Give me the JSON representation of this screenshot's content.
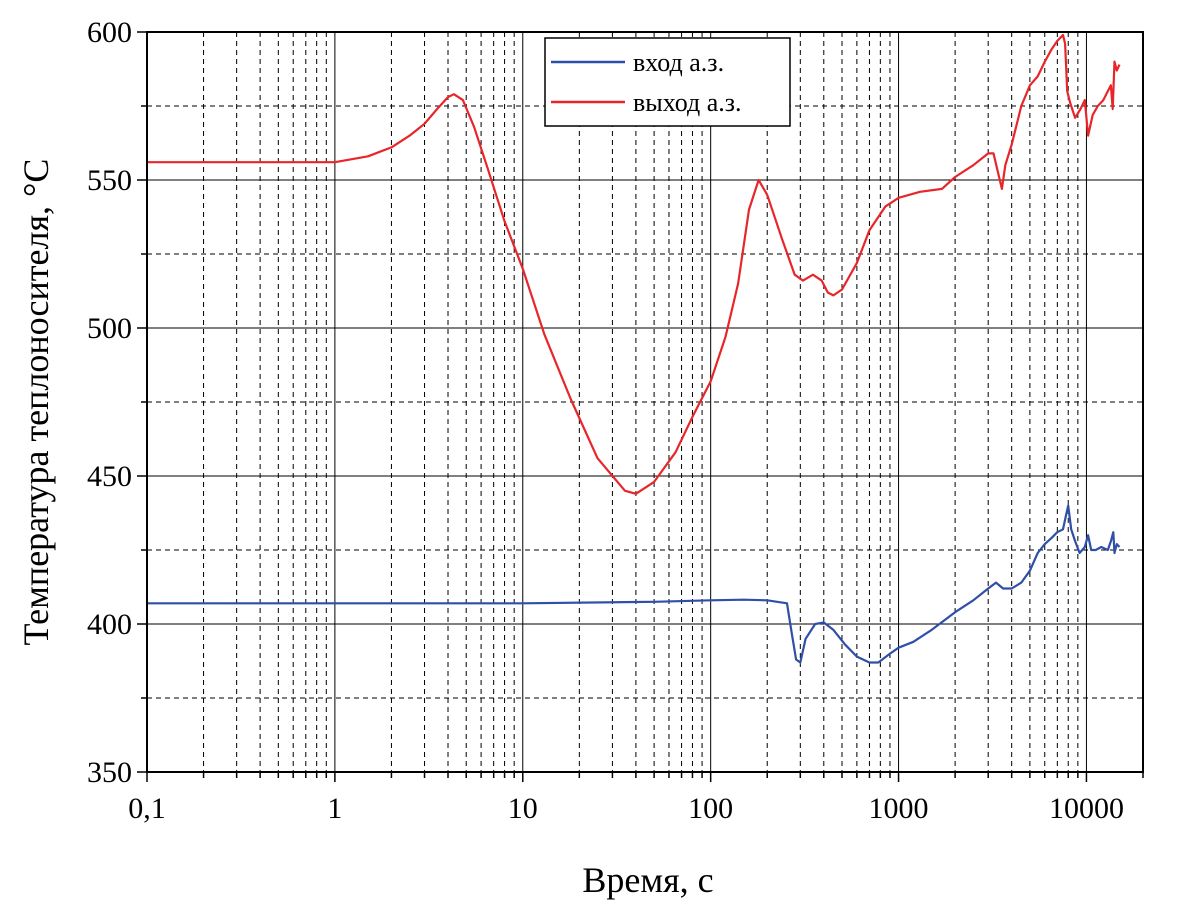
{
  "chart_data": {
    "type": "line",
    "xlabel": "Время, с",
    "ylabel": "Температура теплоносителя,  °C",
    "xscale": "log",
    "xlim": [
      0.1,
      20000
    ],
    "ylim": [
      350,
      600
    ],
    "x_ticks": [
      {
        "value": 0.1,
        "label": "0,1"
      },
      {
        "value": 1,
        "label": "1"
      },
      {
        "value": 10,
        "label": "10"
      },
      {
        "value": 100,
        "label": "100"
      },
      {
        "value": 1000,
        "label": "1000"
      },
      {
        "value": 10000,
        "label": "10000"
      }
    ],
    "y_ticks": [
      {
        "value": 350,
        "label": "350"
      },
      {
        "value": 400,
        "label": "400"
      },
      {
        "value": 450,
        "label": "450"
      },
      {
        "value": 500,
        "label": "500"
      },
      {
        "value": 550,
        "label": "550"
      },
      {
        "value": 600,
        "label": "600"
      }
    ],
    "grid": true,
    "legend": "top-right",
    "series": [
      {
        "name": "вход а.з.",
        "color": "#2f4fa8",
        "points": [
          [
            0.1,
            407
          ],
          [
            1,
            407
          ],
          [
            10,
            407
          ],
          [
            50,
            407.5
          ],
          [
            100,
            408
          ],
          [
            150,
            408.2
          ],
          [
            200,
            408
          ],
          [
            255,
            407
          ],
          [
            270,
            397
          ],
          [
            285,
            388
          ],
          [
            300,
            387
          ],
          [
            320,
            395
          ],
          [
            360,
            400
          ],
          [
            400,
            400.5
          ],
          [
            450,
            398
          ],
          [
            520,
            393
          ],
          [
            600,
            389
          ],
          [
            700,
            387
          ],
          [
            780,
            387
          ],
          [
            900,
            390
          ],
          [
            1000,
            392
          ],
          [
            1200,
            394
          ],
          [
            1500,
            398
          ],
          [
            2000,
            404
          ],
          [
            2500,
            408
          ],
          [
            3000,
            412
          ],
          [
            3300,
            414
          ],
          [
            3600,
            412
          ],
          [
            4000,
            412
          ],
          [
            4500,
            414
          ],
          [
            5000,
            418
          ],
          [
            5500,
            424
          ],
          [
            6000,
            427
          ],
          [
            6500,
            429
          ],
          [
            7000,
            431
          ],
          [
            7500,
            432
          ],
          [
            7800,
            437
          ],
          [
            8000,
            440
          ],
          [
            8300,
            432
          ],
          [
            8700,
            428
          ],
          [
            9200,
            424
          ],
          [
            9800,
            426
          ],
          [
            10200,
            430
          ],
          [
            10600,
            425
          ],
          [
            11200,
            425
          ],
          [
            12000,
            426
          ],
          [
            13000,
            425
          ],
          [
            13500,
            428
          ],
          [
            13900,
            431
          ],
          [
            14100,
            424
          ],
          [
            14500,
            427
          ],
          [
            15000,
            426
          ]
        ]
      },
      {
        "name": "выход а.з.",
        "color": "#e8262a",
        "points": [
          [
            0.1,
            556
          ],
          [
            0.5,
            556
          ],
          [
            1,
            556
          ],
          [
            1.5,
            558
          ],
          [
            2,
            561
          ],
          [
            2.5,
            565
          ],
          [
            3,
            569
          ],
          [
            3.5,
            574
          ],
          [
            4,
            578
          ],
          [
            4.3,
            579
          ],
          [
            4.8,
            577
          ],
          [
            5.5,
            568
          ],
          [
            6.5,
            554
          ],
          [
            8,
            536
          ],
          [
            10,
            520
          ],
          [
            13,
            498
          ],
          [
            18,
            476
          ],
          [
            25,
            456
          ],
          [
            35,
            445
          ],
          [
            40,
            444
          ],
          [
            50,
            448
          ],
          [
            65,
            458
          ],
          [
            80,
            470
          ],
          [
            100,
            482
          ],
          [
            120,
            497
          ],
          [
            140,
            515
          ],
          [
            160,
            540
          ],
          [
            180,
            550
          ],
          [
            200,
            545
          ],
          [
            240,
            530
          ],
          [
            280,
            518
          ],
          [
            310,
            516
          ],
          [
            350,
            518
          ],
          [
            390,
            516
          ],
          [
            420,
            512
          ],
          [
            450,
            511
          ],
          [
            500,
            513
          ],
          [
            600,
            522
          ],
          [
            700,
            533
          ],
          [
            850,
            541
          ],
          [
            1000,
            544
          ],
          [
            1300,
            546
          ],
          [
            1700,
            547
          ],
          [
            2000,
            551
          ],
          [
            2500,
            555
          ],
          [
            3000,
            559
          ],
          [
            3200,
            559
          ],
          [
            3400,
            552
          ],
          [
            3550,
            547
          ],
          [
            3700,
            555
          ],
          [
            4000,
            562
          ],
          [
            4500,
            575
          ],
          [
            5000,
            582
          ],
          [
            5500,
            585
          ],
          [
            6000,
            590
          ],
          [
            6500,
            594
          ],
          [
            7000,
            597
          ],
          [
            7500,
            599
          ],
          [
            7700,
            596
          ],
          [
            7900,
            580
          ],
          [
            8200,
            576
          ],
          [
            8700,
            571
          ],
          [
            9300,
            574
          ],
          [
            9800,
            577
          ],
          [
            10200,
            565
          ],
          [
            10800,
            572
          ],
          [
            11500,
            575
          ],
          [
            12300,
            577
          ],
          [
            13000,
            580
          ],
          [
            13500,
            582
          ],
          [
            13800,
            574
          ],
          [
            14100,
            590
          ],
          [
            14500,
            587
          ],
          [
            15000,
            589
          ]
        ]
      }
    ]
  }
}
